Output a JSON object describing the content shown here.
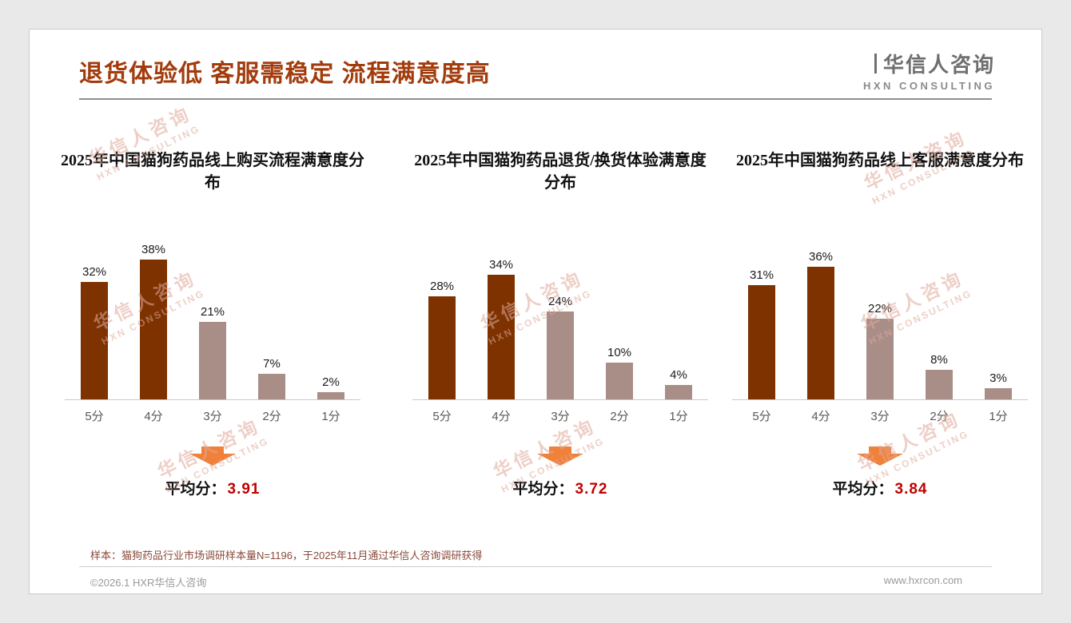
{
  "header": {
    "title": "退货体验低 客服需稳定 流程满意度高",
    "logo": {
      "cn": "华信人咨询",
      "en": "HXN CONSULTING"
    }
  },
  "watermark": {
    "cn": "华信人咨询",
    "en": "HXN CONSULTING"
  },
  "chart_data": [
    {
      "type": "bar",
      "title": "2025年中国猫狗药品线上购买流程满意度分布",
      "categories": [
        "5分",
        "4分",
        "3分",
        "2分",
        "1分"
      ],
      "values": [
        32,
        38,
        21,
        7,
        2
      ],
      "unit": "%",
      "ylim": [
        0,
        40
      ],
      "grid": false,
      "average_label": "平均分：",
      "average": "3.91"
    },
    {
      "type": "bar",
      "title": "2025年中国猫狗药品退货/换货体验满意度分布",
      "categories": [
        "5分",
        "4分",
        "3分",
        "2分",
        "1分"
      ],
      "values": [
        28,
        34,
        24,
        10,
        4
      ],
      "unit": "%",
      "ylim": [
        0,
        40
      ],
      "grid": false,
      "average_label": "平均分：",
      "average": "3.72"
    },
    {
      "type": "bar",
      "title": "2025年中国猫狗药品线上客服满意度分布",
      "categories": [
        "5分",
        "4分",
        "3分",
        "2分",
        "1分"
      ],
      "values": [
        31,
        36,
        22,
        8,
        3
      ],
      "unit": "%",
      "ylim": [
        0,
        40
      ],
      "grid": false,
      "average_label": "平均分：",
      "average": "3.84"
    }
  ],
  "footnote": "样本：猫狗药品行业市场调研样本量N=1196，于2025年11月通过华信人咨询调研获得",
  "footer": {
    "copyright": "©2026.1 HXR华信人咨询",
    "website": "www.hxrcon.com"
  },
  "colors": {
    "title": "#A23C0D",
    "bar_dark": "#7D3200",
    "bar_light": "#A98E88",
    "arrow": "#F0813A",
    "average_value": "#C00000",
    "footnote": "#8A4A3B"
  }
}
